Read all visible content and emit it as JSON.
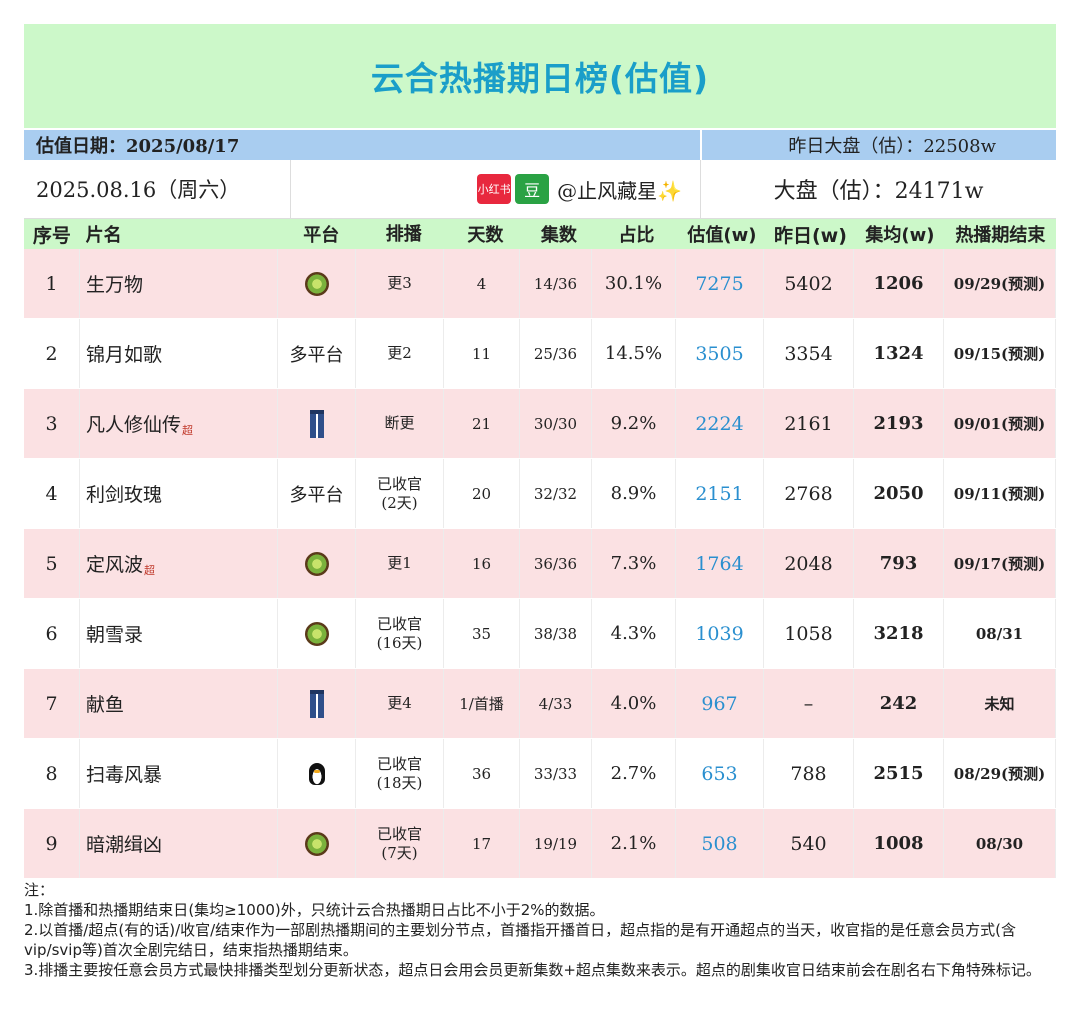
{
  "title": "云合热播期日榜(估值)",
  "date_bar": {
    "left": "估值日期：2025/08/17",
    "right": "昨日大盘（估）：22508w"
  },
  "info": {
    "date": "2025.08.16（周六）",
    "badge_xhs": "小红书",
    "badge_db": "豆",
    "handle": "@止风藏星✨",
    "total": "大盘（估）：24171w"
  },
  "columns": [
    "序号",
    "片名",
    "平台",
    "排播",
    "天数",
    "集数",
    "占比",
    "估值(w)",
    "昨日(w)",
    "集均(w)",
    "热播期结束"
  ],
  "rows": [
    {
      "idx": "1",
      "name": "生万物",
      "super": "",
      "platform": "kiwi-icon",
      "platform_text": "",
      "sched": "更3",
      "sched2": "",
      "days": "4",
      "eps": "14/36",
      "share": "30.1%",
      "est": "7275",
      "yest": "5402",
      "avg": "1206",
      "end": "09/29(预测)"
    },
    {
      "idx": "2",
      "name": "锦月如歌",
      "super": "",
      "platform": "",
      "platform_text": "多平台",
      "sched": "更2",
      "sched2": "",
      "days": "11",
      "eps": "25/36",
      "share": "14.5%",
      "est": "3505",
      "yest": "3354",
      "avg": "1324",
      "end": "09/15(预测)"
    },
    {
      "idx": "3",
      "name": "凡人修仙传",
      "super": "超",
      "platform": "jeans-icon",
      "platform_text": "",
      "sched": "断更",
      "sched2": "",
      "days": "21",
      "eps": "30/30",
      "share": "9.2%",
      "est": "2224",
      "yest": "2161",
      "avg": "2193",
      "end": "09/01(预测)"
    },
    {
      "idx": "4",
      "name": "利剑玫瑰",
      "super": "",
      "platform": "",
      "platform_text": "多平台",
      "sched": "已收官",
      "sched2": "(2天)",
      "days": "20",
      "eps": "32/32",
      "share": "8.9%",
      "est": "2151",
      "yest": "2768",
      "avg": "2050",
      "end": "09/11(预测)"
    },
    {
      "idx": "5",
      "name": "定风波",
      "super": "超",
      "platform": "kiwi-icon",
      "platform_text": "",
      "sched": "更1",
      "sched2": "",
      "days": "16",
      "eps": "36/36",
      "share": "7.3%",
      "est": "1764",
      "yest": "2048",
      "avg": "793",
      "end": "09/17(预测)"
    },
    {
      "idx": "6",
      "name": "朝雪录",
      "super": "",
      "platform": "kiwi-icon",
      "platform_text": "",
      "sched": "已收官",
      "sched2": "(16天)",
      "days": "35",
      "eps": "38/38",
      "share": "4.3%",
      "est": "1039",
      "yest": "1058",
      "avg": "3218",
      "end": "08/31"
    },
    {
      "idx": "7",
      "name": "献鱼",
      "super": "",
      "platform": "jeans-icon",
      "platform_text": "",
      "sched": "更4",
      "sched2": "",
      "days": "1/首播",
      "eps": "4/33",
      "share": "4.0%",
      "est": "967",
      "yest": "–",
      "avg": "242",
      "end": "未知"
    },
    {
      "idx": "8",
      "name": "扫毒风暴",
      "super": "",
      "platform": "penguin-icon",
      "platform_text": "",
      "sched": "已收官",
      "sched2": "(18天)",
      "days": "36",
      "eps": "33/33",
      "share": "2.7%",
      "est": "653",
      "yest": "788",
      "avg": "2515",
      "end": "08/29(预测)"
    },
    {
      "idx": "9",
      "name": "暗潮缉凶",
      "super": "",
      "platform": "kiwi-icon",
      "platform_text": "",
      "sched": "已收官",
      "sched2": "(7天)",
      "days": "17",
      "eps": "19/19",
      "share": "2.1%",
      "est": "508",
      "yest": "540",
      "avg": "1008",
      "end": "08/30"
    }
  ],
  "notes": [
    "注：",
    "1.除首播和热播期结束日(集均≥1000)外，只统计云合热播期日占比不小于2%的数据。",
    "2.以首播/超点(有的话)/收官/结束作为一部剧热播期间的主要划分节点，首播指开播首日，超点指的是有开通超点的当天，收官指的是任意会员方式(含vip/svip等)首次全剧完结日，结束指热播期结束。",
    "3.排播主要按任意会员方式最快排播类型划分更新状态，超点日会用会员更新集数+超点集数来表示。超点的剧集收官日结束前会在剧名右下角特殊标记。"
  ]
}
